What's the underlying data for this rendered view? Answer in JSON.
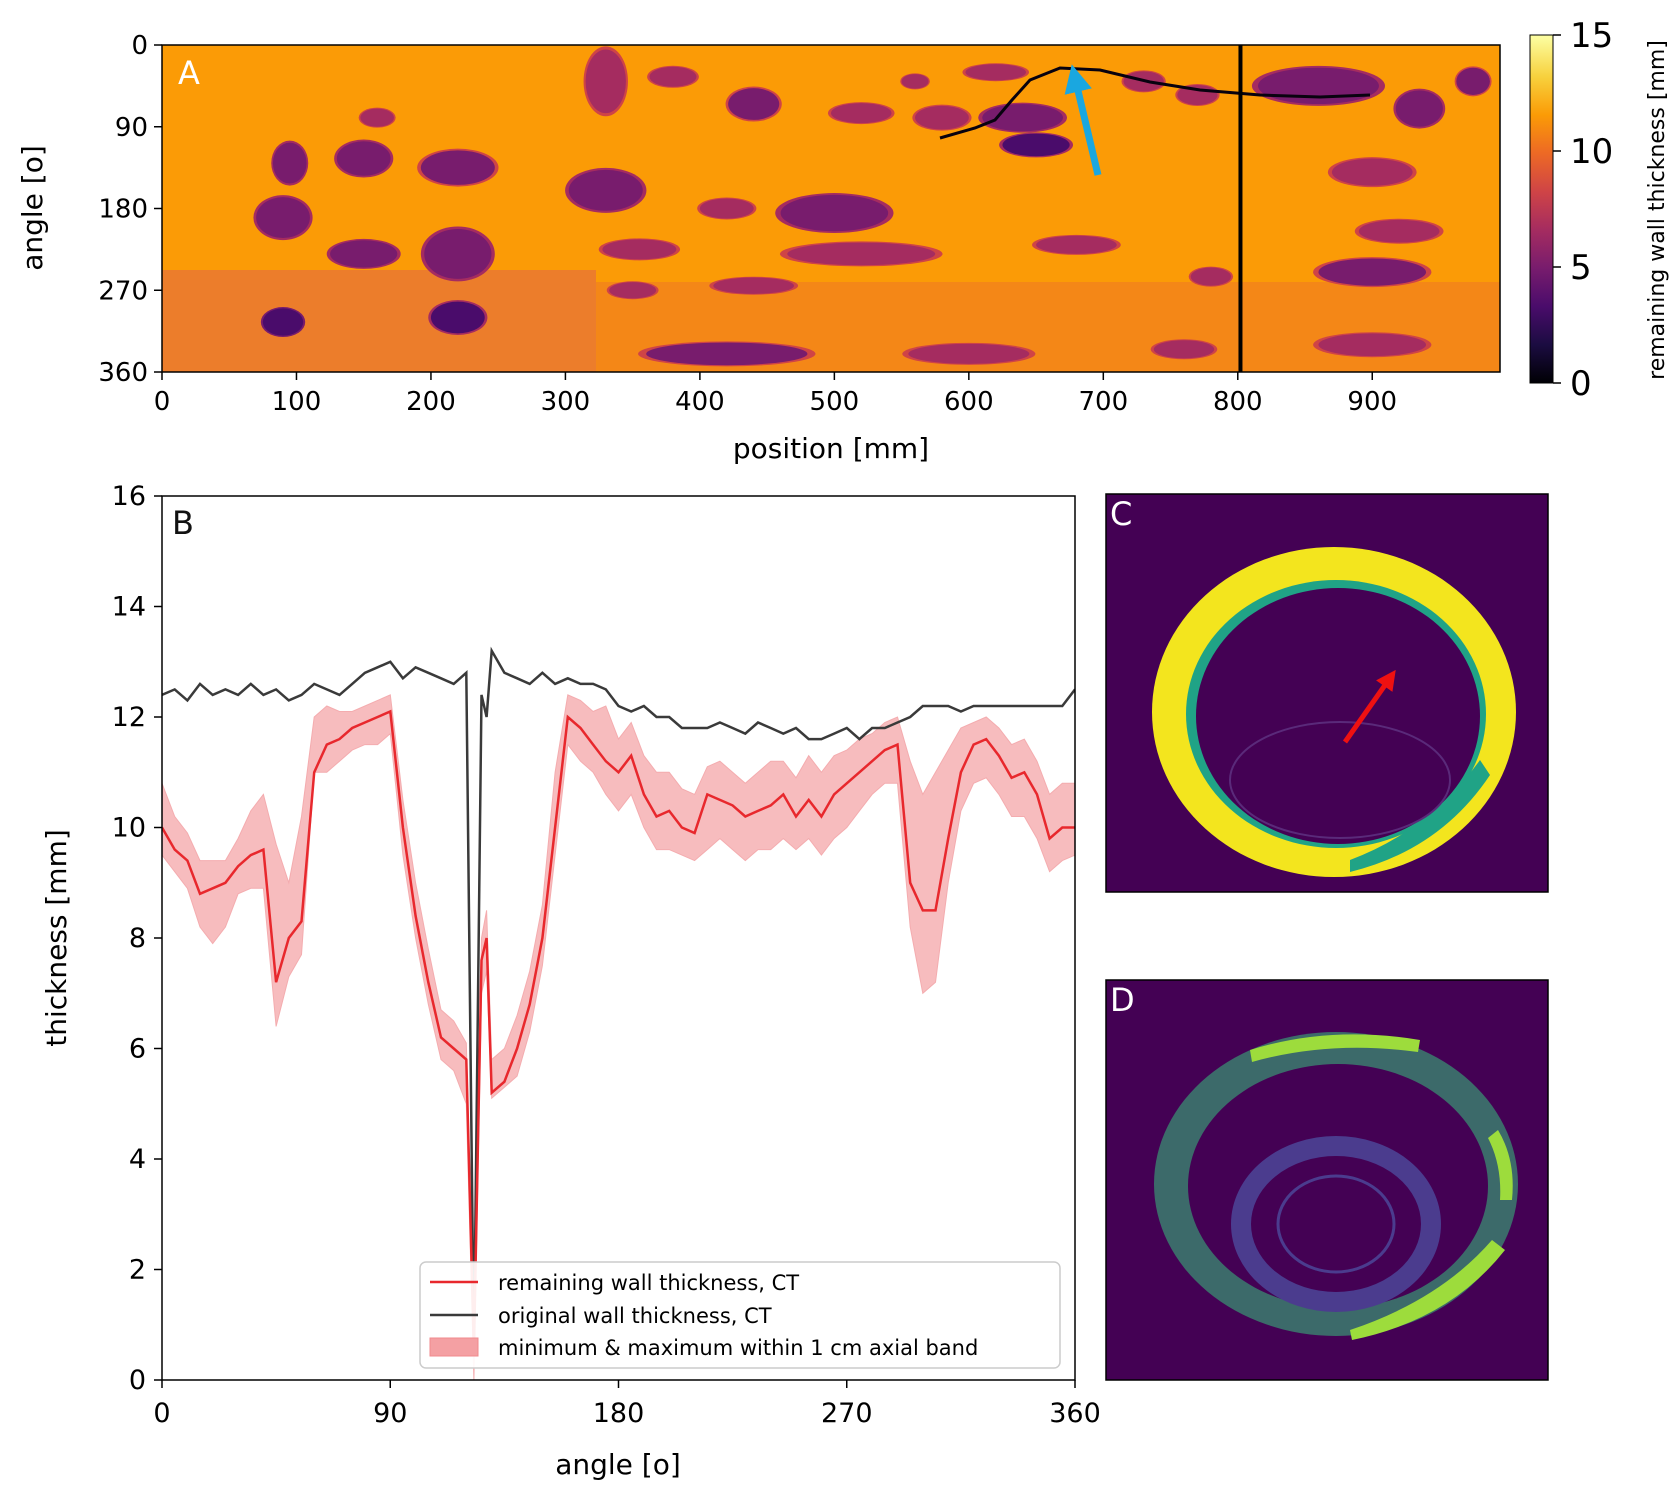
{
  "chart_data": [
    {
      "panel": "A",
      "type": "heatmap",
      "label": "A",
      "xlabel": "position [mm]",
      "ylabel": "angle [o]",
      "xlim": [
        0,
        995
      ],
      "ylim": [
        360,
        0
      ],
      "xticks": [
        0,
        100,
        200,
        300,
        400,
        500,
        600,
        700,
        800,
        900
      ],
      "yticks": [
        0,
        90,
        180,
        270,
        360
      ],
      "colorbar": {
        "label": "remaining wall thickness [mm]",
        "range": [
          0,
          15
        ],
        "ticks": [
          0,
          5,
          10,
          15
        ],
        "colormap": [
          "#000004",
          "#1b0c41",
          "#4a0c6b",
          "#781c6d",
          "#a52c60",
          "#cf4446",
          "#ed6925",
          "#fb9b06",
          "#f7d13d",
          "#fcffa4"
        ]
      },
      "background_value_mm": 10.5,
      "vertical_line_position_mm": 802,
      "arrow_color": "#1aa7e0",
      "pits": [
        {
          "x": 330,
          "y": 40,
          "w": 30,
          "h": 70,
          "v": 6.0
        },
        {
          "x": 380,
          "y": 35,
          "w": 35,
          "h": 22,
          "v": 6.5
        },
        {
          "x": 440,
          "y": 65,
          "w": 38,
          "h": 35,
          "v": 5.5
        },
        {
          "x": 520,
          "y": 75,
          "w": 45,
          "h": 22,
          "v": 6.0
        },
        {
          "x": 560,
          "y": 40,
          "w": 20,
          "h": 16,
          "v": 6.0
        },
        {
          "x": 620,
          "y": 30,
          "w": 45,
          "h": 18,
          "v": 6.0
        },
        {
          "x": 580,
          "y": 80,
          "w": 40,
          "h": 26,
          "v": 6.5
        },
        {
          "x": 640,
          "y": 80,
          "w": 60,
          "h": 30,
          "v": 4.5
        },
        {
          "x": 650,
          "y": 110,
          "w": 50,
          "h": 25,
          "v": 4.0
        },
        {
          "x": 730,
          "y": 40,
          "w": 30,
          "h": 22,
          "v": 6.0
        },
        {
          "x": 770,
          "y": 55,
          "w": 30,
          "h": 22,
          "v": 6.0
        },
        {
          "x": 860,
          "y": 45,
          "w": 90,
          "h": 40,
          "v": 5.0
        },
        {
          "x": 935,
          "y": 70,
          "w": 35,
          "h": 40,
          "v": 5.0
        },
        {
          "x": 975,
          "y": 40,
          "w": 25,
          "h": 30,
          "v": 5.5
        },
        {
          "x": 95,
          "y": 130,
          "w": 25,
          "h": 45,
          "v": 5.0
        },
        {
          "x": 150,
          "y": 125,
          "w": 40,
          "h": 38,
          "v": 5.0
        },
        {
          "x": 220,
          "y": 135,
          "w": 55,
          "h": 38,
          "v": 5.5
        },
        {
          "x": 160,
          "y": 80,
          "w": 25,
          "h": 20,
          "v": 6.0
        },
        {
          "x": 90,
          "y": 190,
          "w": 40,
          "h": 45,
          "v": 4.5
        },
        {
          "x": 150,
          "y": 230,
          "w": 50,
          "h": 30,
          "v": 5.0
        },
        {
          "x": 220,
          "y": 230,
          "w": 50,
          "h": 55,
          "v": 5.0
        },
        {
          "x": 220,
          "y": 300,
          "w": 40,
          "h": 35,
          "v": 4.0
        },
        {
          "x": 90,
          "y": 305,
          "w": 30,
          "h": 30,
          "v": 3.5
        },
        {
          "x": 330,
          "y": 160,
          "w": 55,
          "h": 45,
          "v": 5.0
        },
        {
          "x": 420,
          "y": 180,
          "w": 40,
          "h": 22,
          "v": 6.0
        },
        {
          "x": 500,
          "y": 185,
          "w": 80,
          "h": 40,
          "v": 5.0
        },
        {
          "x": 520,
          "y": 230,
          "w": 110,
          "h": 25,
          "v": 6.0
        },
        {
          "x": 680,
          "y": 220,
          "w": 60,
          "h": 20,
          "v": 6.0
        },
        {
          "x": 355,
          "y": 225,
          "w": 55,
          "h": 22,
          "v": 6.0
        },
        {
          "x": 900,
          "y": 140,
          "w": 60,
          "h": 30,
          "v": 6.0
        },
        {
          "x": 920,
          "y": 205,
          "w": 60,
          "h": 25,
          "v": 6.0
        },
        {
          "x": 900,
          "y": 250,
          "w": 80,
          "h": 30,
          "v": 5.5
        },
        {
          "x": 780,
          "y": 255,
          "w": 30,
          "h": 20,
          "v": 6.0
        },
        {
          "x": 420,
          "y": 340,
          "w": 120,
          "h": 25,
          "v": 5.5
        },
        {
          "x": 600,
          "y": 340,
          "w": 90,
          "h": 22,
          "v": 6.0
        },
        {
          "x": 760,
          "y": 335,
          "w": 45,
          "h": 20,
          "v": 6.0
        },
        {
          "x": 900,
          "y": 330,
          "w": 80,
          "h": 25,
          "v": 6.0
        },
        {
          "x": 440,
          "y": 265,
          "w": 60,
          "h": 18,
          "v": 6.0
        },
        {
          "x": 350,
          "y": 270,
          "w": 35,
          "h": 18,
          "v": 6.5
        }
      ]
    },
    {
      "panel": "B",
      "type": "line",
      "label": "B",
      "xlabel": "angle [o]",
      "ylabel": "thickness [mm]",
      "xlim": [
        0,
        360
      ],
      "ylim": [
        0,
        16
      ],
      "xticks": [
        0,
        90,
        180,
        270,
        360
      ],
      "yticks": [
        0,
        2,
        4,
        6,
        8,
        10,
        12,
        14,
        16
      ],
      "legend_position": "lower-right",
      "legend": [
        "remaining wall thickness, CT",
        "original wall thickness, CT",
        "minimum & maximum within 1 cm axial band"
      ],
      "colors": {
        "remaining": "#e8282d",
        "band": "#f4a0a3",
        "original": "#3a3a3a"
      },
      "x": [
        0,
        5,
        10,
        15,
        20,
        25,
        30,
        35,
        40,
        45,
        50,
        55,
        60,
        65,
        70,
        75,
        80,
        85,
        90,
        95,
        100,
        105,
        110,
        115,
        120,
        123,
        126,
        128,
        130,
        135,
        140,
        145,
        150,
        155,
        160,
        165,
        170,
        175,
        180,
        185,
        190,
        195,
        200,
        205,
        210,
        215,
        220,
        225,
        230,
        235,
        240,
        245,
        250,
        255,
        260,
        265,
        270,
        275,
        280,
        285,
        290,
        295,
        300,
        305,
        310,
        315,
        320,
        325,
        330,
        335,
        340,
        345,
        350,
        355,
        360
      ],
      "series": [
        {
          "name": "remaining wall thickness, CT",
          "values": [
            10.0,
            9.6,
            9.4,
            8.8,
            8.9,
            9.0,
            9.3,
            9.5,
            9.6,
            7.2,
            8.0,
            8.3,
            11.0,
            11.5,
            11.6,
            11.8,
            11.9,
            12.0,
            12.1,
            10.0,
            8.4,
            7.2,
            6.2,
            6.0,
            5.8,
            0.5,
            7.6,
            8.0,
            5.2,
            5.4,
            6.0,
            6.8,
            8.0,
            10.0,
            12.0,
            11.8,
            11.5,
            11.2,
            11.0,
            11.3,
            10.6,
            10.2,
            10.3,
            10.0,
            9.9,
            10.6,
            10.5,
            10.4,
            10.2,
            10.3,
            10.4,
            10.6,
            10.2,
            10.5,
            10.2,
            10.6,
            10.8,
            11.0,
            11.2,
            11.4,
            11.5,
            9.0,
            8.5,
            8.5,
            9.8,
            11.0,
            11.5,
            11.6,
            11.3,
            10.9,
            11.0,
            10.6,
            9.8,
            10.0,
            10.0
          ]
        },
        {
          "name": "minimum & maximum within 1 cm axial band",
          "lower": [
            9.5,
            9.2,
            8.9,
            8.2,
            7.9,
            8.2,
            8.8,
            8.9,
            8.9,
            6.4,
            7.3,
            7.7,
            11.0,
            11.0,
            11.2,
            11.4,
            11.5,
            11.5,
            11.7,
            9.5,
            8.0,
            6.8,
            5.8,
            5.6,
            5.0,
            0.0,
            7.0,
            7.4,
            5.1,
            5.3,
            5.5,
            6.3,
            7.5,
            9.5,
            11.5,
            11.2,
            11.0,
            10.6,
            10.3,
            10.6,
            10.0,
            9.6,
            9.6,
            9.5,
            9.4,
            9.6,
            9.8,
            9.6,
            9.4,
            9.6,
            9.6,
            9.8,
            9.6,
            9.8,
            9.5,
            9.8,
            10.0,
            10.3,
            10.6,
            10.8,
            10.8,
            8.2,
            7.0,
            7.2,
            9.0,
            10.3,
            10.8,
            10.9,
            10.6,
            10.2,
            10.2,
            9.8,
            9.2,
            9.4,
            9.5
          ],
          "upper": [
            10.8,
            10.2,
            9.9,
            9.4,
            9.4,
            9.4,
            9.8,
            10.3,
            10.6,
            9.7,
            9.0,
            10.2,
            12.0,
            12.2,
            12.1,
            12.1,
            12.2,
            12.3,
            12.4,
            10.5,
            9.0,
            7.8,
            6.7,
            6.5,
            6.1,
            1.0,
            8.0,
            8.5,
            5.8,
            6.0,
            6.6,
            7.4,
            8.6,
            11.0,
            12.4,
            12.3,
            12.1,
            12.2,
            11.6,
            11.9,
            11.3,
            11.0,
            11.0,
            10.7,
            10.6,
            11.1,
            11.2,
            11.0,
            10.8,
            11.0,
            11.2,
            11.2,
            10.9,
            11.3,
            11.0,
            11.3,
            11.4,
            11.6,
            11.7,
            11.9,
            12.0,
            11.2,
            10.6,
            11.0,
            11.4,
            11.8,
            11.9,
            12.0,
            11.8,
            11.5,
            11.6,
            11.2,
            10.6,
            10.8,
            10.8
          ]
        },
        {
          "name": "original wall thickness, CT",
          "values": [
            12.4,
            12.5,
            12.3,
            12.6,
            12.4,
            12.5,
            12.4,
            12.6,
            12.4,
            12.5,
            12.3,
            12.4,
            12.6,
            12.5,
            12.4,
            12.6,
            12.8,
            12.9,
            13.0,
            12.7,
            12.9,
            12.8,
            12.7,
            12.6,
            12.8,
            0.5,
            12.4,
            12.0,
            13.2,
            12.8,
            12.7,
            12.6,
            12.8,
            12.6,
            12.7,
            12.6,
            12.6,
            12.5,
            12.2,
            12.1,
            12.2,
            12.0,
            12.0,
            11.8,
            11.8,
            11.8,
            11.9,
            11.8,
            11.7,
            11.9,
            11.8,
            11.7,
            11.8,
            11.6,
            11.6,
            11.7,
            11.8,
            11.6,
            11.8,
            11.8,
            11.9,
            12.0,
            12.2,
            12.2,
            12.2,
            12.1,
            12.2,
            12.2,
            12.2,
            12.2,
            12.2,
            12.2,
            12.2,
            12.2,
            12.5
          ]
        }
      ]
    },
    {
      "panel": "C",
      "type": "other",
      "label": "C",
      "background": "#440154",
      "ring_color": "#f3e51e",
      "ring_accent": "#20a386",
      "arrow_color": "#ee1111"
    },
    {
      "panel": "D",
      "type": "other",
      "label": "D",
      "background": "#440154",
      "ring_color": "#3c6a6a",
      "ring_accent": "#9ddc3c"
    }
  ]
}
